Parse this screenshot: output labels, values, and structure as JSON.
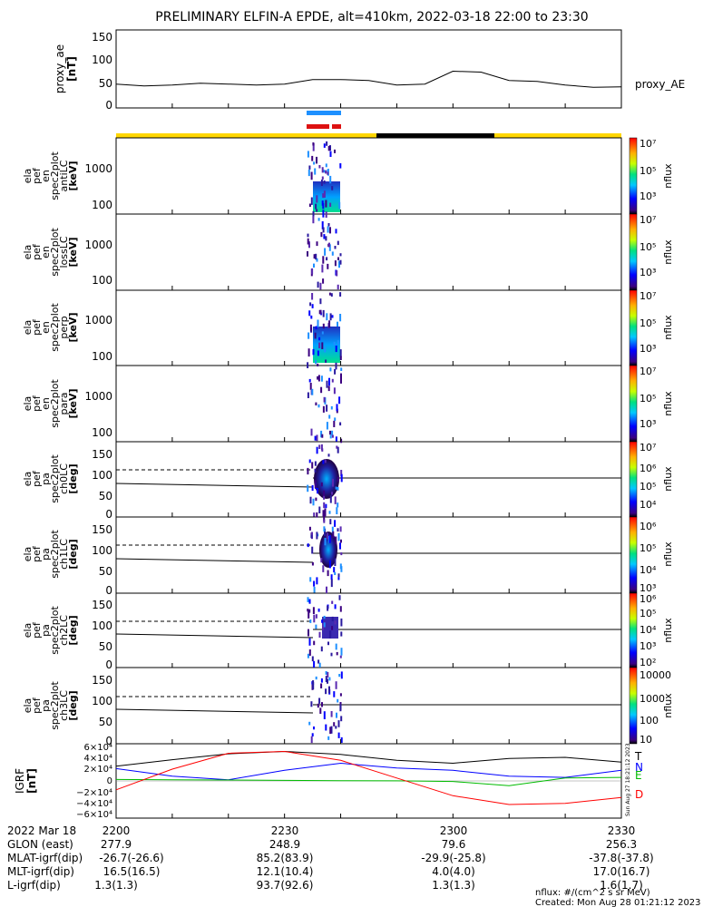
{
  "title": "PRELIMINARY ELFIN-A EPDE, alt=410km, 2022-03-18 22:00 to 23:30",
  "time_ticks": [
    "2200",
    "2230",
    "2300",
    "2330"
  ],
  "panels": [
    {
      "id": "proxy_ae",
      "ylabel": [
        "proxy_ae",
        "[nT]"
      ],
      "yticks": [
        "150",
        "100",
        "50",
        "0"
      ],
      "series_label": "proxy_AE"
    },
    {
      "id": "en_antiLC",
      "ylabel": [
        "ela",
        "pef",
        "en",
        "spec2plot",
        "antiLC",
        "[keV]"
      ],
      "yticks": [
        "1000",
        "100"
      ],
      "cb_ticks": [
        "10⁷",
        "10⁶",
        "10⁵",
        "10⁴",
        "10³",
        "10²"
      ],
      "cb_label": "nflux"
    },
    {
      "id": "en_lossLC",
      "ylabel": [
        "ela",
        "pef",
        "en",
        "spec2plot",
        "lossLC",
        "[keV]"
      ],
      "yticks": [
        "1000",
        "100"
      ],
      "cb_ticks": [
        "10⁷",
        "10⁶",
        "10⁵",
        "10⁴",
        "10³",
        "10²"
      ],
      "cb_label": "nflux"
    },
    {
      "id": "en_perp",
      "ylabel": [
        "ela",
        "pef",
        "en",
        "spec2plot",
        "perp",
        "[keV]"
      ],
      "yticks": [
        "1000",
        "100"
      ],
      "cb_ticks": [
        "10⁷",
        "10⁶",
        "10⁵",
        "10⁴",
        "10³",
        "10²"
      ],
      "cb_label": "nflux"
    },
    {
      "id": "en_para",
      "ylabel": [
        "ela",
        "pef",
        "en",
        "spec2plot",
        "para",
        "[keV]"
      ],
      "yticks": [
        "1000",
        "100"
      ],
      "cb_ticks": [
        "10⁷",
        "10⁶",
        "10⁵",
        "10⁴",
        "10³",
        "10²"
      ],
      "cb_label": "nflux"
    },
    {
      "id": "pa_ch0LC",
      "ylabel": [
        "ela",
        "pef",
        "pa",
        "spec2plot",
        "ch0LC",
        "[deg]"
      ],
      "yticks": [
        "150",
        "100",
        "50",
        "0"
      ],
      "cb_ticks": [
        "10⁷",
        "10⁶",
        "10⁵",
        "10⁴"
      ],
      "cb_label": "nflux"
    },
    {
      "id": "pa_ch1LC",
      "ylabel": [
        "ela",
        "pef",
        "pa",
        "spec2plot",
        "ch1LC",
        "[deg]"
      ],
      "yticks": [
        "150",
        "100",
        "50",
        "0"
      ],
      "cb_ticks": [
        "10⁶",
        "10⁵",
        "10⁴",
        "10³"
      ],
      "cb_label": "nflux"
    },
    {
      "id": "pa_ch2LC",
      "ylabel": [
        "ela",
        "pef",
        "pa",
        "spec2plot",
        "ch2LC",
        "[deg]"
      ],
      "yticks": [
        "150",
        "100",
        "50",
        "0"
      ],
      "cb_ticks": [
        "10⁶",
        "10⁵",
        "10⁴",
        "10³",
        "10²"
      ],
      "cb_label": "nflux"
    },
    {
      "id": "pa_ch3LC",
      "ylabel": [
        "ela",
        "pef",
        "pa",
        "spec2plot",
        "ch3LC",
        "[deg]"
      ],
      "yticks": [
        "150",
        "100",
        "50",
        "0"
      ],
      "cb_ticks": [
        "10000",
        "1000",
        "100",
        "10"
      ],
      "cb_label": "nflux"
    },
    {
      "id": "igrf",
      "ylabel": [
        "IGRF",
        "[nT]"
      ],
      "yticks": [
        "6×10⁴",
        "4×10⁴",
        "2×10⁴",
        "0",
        "−2×10⁴",
        "−4×10⁴",
        "−6×10⁴"
      ],
      "legend": [
        "T",
        "N",
        "E",
        "D"
      ]
    }
  ],
  "chart_data": {
    "type": "multi-panel time series and spectrograms",
    "x_range": [
      "22:00",
      "23:30"
    ],
    "proxy_ae": {
      "ylim": [
        0,
        150
      ],
      "series": [
        {
          "name": "proxy_AE",
          "x": [
            "22:00",
            "22:05",
            "22:10",
            "22:15",
            "22:20",
            "22:25",
            "22:30",
            "22:35",
            "22:40",
            "22:45",
            "22:50",
            "22:55",
            "23:00",
            "23:05",
            "23:10",
            "23:15",
            "23:20",
            "23:25",
            "23:30"
          ],
          "values": [
            42,
            38,
            40,
            44,
            42,
            40,
            42,
            52,
            52,
            50,
            40,
            42,
            70,
            68,
            50,
            48,
            40,
            35,
            36
          ]
        }
      ]
    },
    "igrf": {
      "ylim": [
        -60000,
        60000
      ],
      "series": [
        {
          "name": "T",
          "color": "#000000",
          "x": [
            "22:00",
            "22:10",
            "22:20",
            "22:30",
            "22:40",
            "22:50",
            "23:00",
            "23:10",
            "23:20",
            "23:30"
          ],
          "values": [
            25000,
            36000,
            46000,
            50000,
            45000,
            35000,
            30000,
            38000,
            40000,
            32000
          ]
        },
        {
          "name": "N",
          "color": "#0000ff",
          "x": [
            "22:00",
            "22:10",
            "22:20",
            "22:30",
            "22:40",
            "22:50",
            "23:00",
            "23:10",
            "23:20",
            "23:30"
          ],
          "values": [
            21000,
            8000,
            2000,
            18000,
            30000,
            22000,
            18000,
            8000,
            6000,
            18000
          ]
        },
        {
          "name": "E",
          "color": "#00bb00",
          "x": [
            "22:00",
            "22:10",
            "22:20",
            "22:30",
            "22:40",
            "22:50",
            "23:00",
            "23:10",
            "23:20",
            "23:30"
          ],
          "values": [
            2500,
            2000,
            1500,
            1000,
            500,
            200,
            -1000,
            -8000,
            5000,
            6000
          ]
        },
        {
          "name": "D",
          "color": "#ff0000",
          "x": [
            "22:00",
            "22:10",
            "22:20",
            "22:30",
            "22:40",
            "22:50",
            "23:00",
            "23:10",
            "23:20",
            "23:30"
          ],
          "values": [
            -15000,
            20000,
            47000,
            50000,
            35000,
            5000,
            -25000,
            -40000,
            -38000,
            -28000
          ]
        }
      ]
    },
    "spectrogram_interval": [
      "22:34",
      "22:38"
    ],
    "energy_ylim_keV": [
      60,
      3000
    ],
    "pa_ylim_deg": [
      0,
      180
    ]
  },
  "footer": {
    "rows": [
      {
        "label": "2022 Mar 18",
        "vals": [
          "2200",
          "2230",
          "2300",
          "2330"
        ]
      },
      {
        "label": "GLON (east)",
        "vals": [
          "277.9",
          "248.9",
          "79.6",
          "256.3"
        ]
      },
      {
        "label": "MLAT-igrf(dip)",
        "vals": [
          "-26.7(-26.6)",
          "85.2(83.9)",
          "-29.9(-25.8)",
          "-37.8(-37.8)"
        ]
      },
      {
        "label": "MLT-igrf(dip)",
        "vals": [
          "16.5(16.5)",
          "12.1(10.4)",
          "4.0(4.0)",
          "17.0(16.7)"
        ]
      },
      {
        "label": "L-igrf(dip)",
        "vals": [
          "1.3(1.3)",
          "93.7(92.6)",
          "1.3(1.3)",
          "1.6(1.7)"
        ]
      }
    ],
    "nflux_note": "nflux: #/(cm^2 s sr MeV)",
    "created": "Created: Mon Aug 28 01:21:12 2023",
    "side_stamp": "Sun Aug 27 18:21:12 2023"
  },
  "colors": {
    "sci_blue": "#1e90ff",
    "sci_red": "#dd1111",
    "sunlit": "#ffd700",
    "shadow": "#000000"
  }
}
